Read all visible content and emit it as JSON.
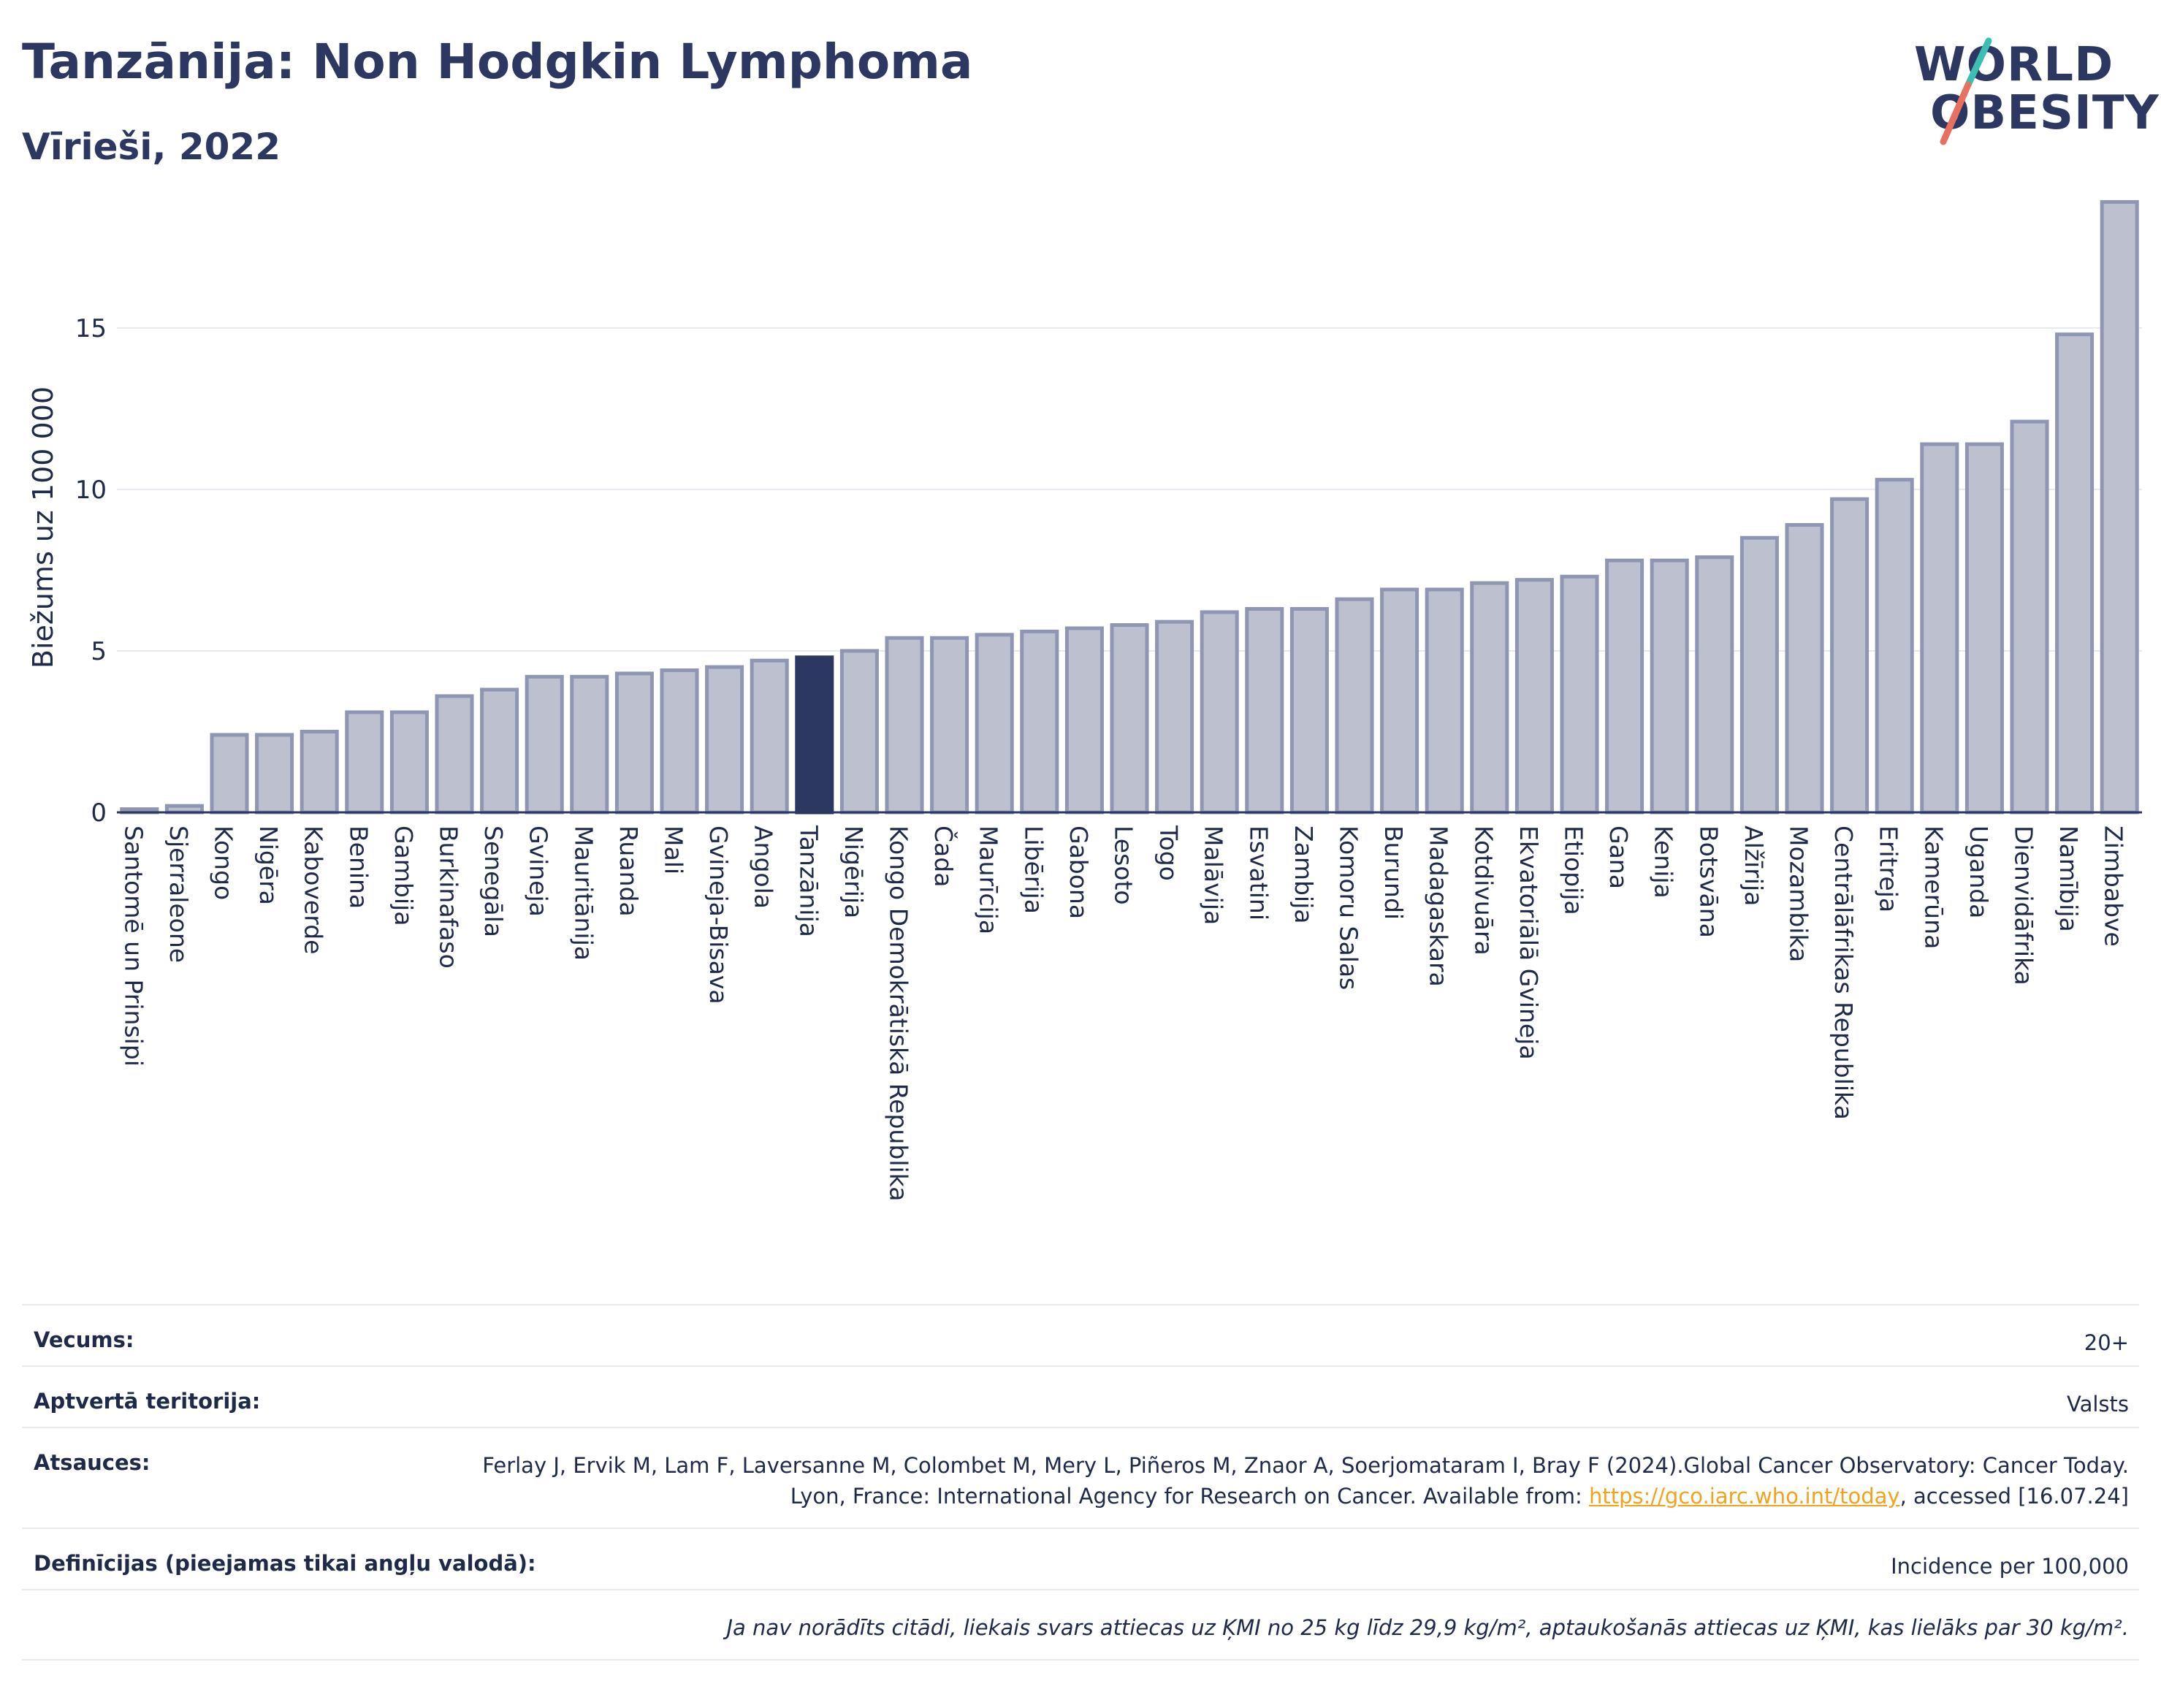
{
  "header": {
    "title": "Tanzānija: Non Hodgkin Lymphoma",
    "subtitle": "Vīrieši, 2022"
  },
  "logo": {
    "line1": "WORLD",
    "line2": "OBESITY"
  },
  "colors": {
    "bar": "#bcc0cf",
    "bar_border": "#8f96b3",
    "highlight": "#2d3862",
    "grid": "#e6e9f0",
    "axis": "#2d3862"
  },
  "chart_data": {
    "type": "bar",
    "ylabel": "Biežums uz 100 000",
    "ylim": [
      0,
      19
    ],
    "yticks": [
      0,
      5,
      10,
      15
    ],
    "grid": true,
    "highlight": "Tanzānija",
    "categories": [
      "Santomē un Prinsipi",
      "Sjerraleone",
      "Kongo",
      "Nigēra",
      "Kaboverde",
      "Benina",
      "Gambija",
      "Burkinafaso",
      "Senegāla",
      "Gvineja",
      "Mauritānija",
      "Ruanda",
      "Mali",
      "Gvineja-Bisava",
      "Angola",
      "Tanzānija",
      "Nigērija",
      "Kongo Demokrātiskā Republika",
      "Čada",
      "Maurīcija",
      "Libērija",
      "Gabona",
      "Lesoto",
      "Togo",
      "Malāvija",
      "Esvatini",
      "Zambija",
      "Komoru Salas",
      "Burundi",
      "Madagaskara",
      "Kotdivuāra",
      "Ekvatoriālā Gvineja",
      "Etiopija",
      "Gana",
      "Kenija",
      "Botsvāna",
      "Alžīrija",
      "Mozambika",
      "Centrālāfrikas Republika",
      "Eritreja",
      "Kamerūna",
      "Uganda",
      "Dienvidāfrika",
      "Namībija",
      "Zimbabve"
    ],
    "values": [
      0.1,
      0.2,
      2.4,
      2.4,
      2.5,
      3.1,
      3.1,
      3.6,
      3.8,
      4.2,
      4.2,
      4.3,
      4.4,
      4.5,
      4.7,
      4.8,
      5.0,
      5.4,
      5.4,
      5.5,
      5.6,
      5.7,
      5.8,
      5.9,
      6.2,
      6.3,
      6.3,
      6.6,
      6.9,
      6.9,
      7.1,
      7.2,
      7.3,
      7.8,
      7.8,
      7.9,
      8.5,
      8.9,
      9.7,
      10.3,
      11.4,
      11.4,
      12.1,
      14.8,
      18.9
    ]
  },
  "info": {
    "age_label": "Vecums:",
    "age_value": "20+",
    "territory_label": "Aptvertā teritorija:",
    "territory_value": "Valsts",
    "refs_label": "Atsauces:",
    "refs_text_1": "Ferlay J, Ervik M, Lam F, Laversanne M, Colombet M, Mery L, Piñeros M, Znaor A, Soerjomataram I, Bray F (2024).Global Cancer Observatory: Cancer Today. Lyon, France: International Agency for Research on Cancer. Available from: ",
    "refs_link": "https://gco.iarc.who.int/today",
    "refs_text_2": ", accessed [16.07.24]",
    "defs_label": "Definīcijas (pieejamas tikai angļu valodā):",
    "defs_value": "Incidence per 100,000",
    "note": "Ja nav norādīts citādi, liekais svars attiecas uz ĶMI no 25 kg līdz 29,9 kg/m², aptaukošanās attiecas uz ĶMI, kas lielāks par 30 kg/m²."
  }
}
